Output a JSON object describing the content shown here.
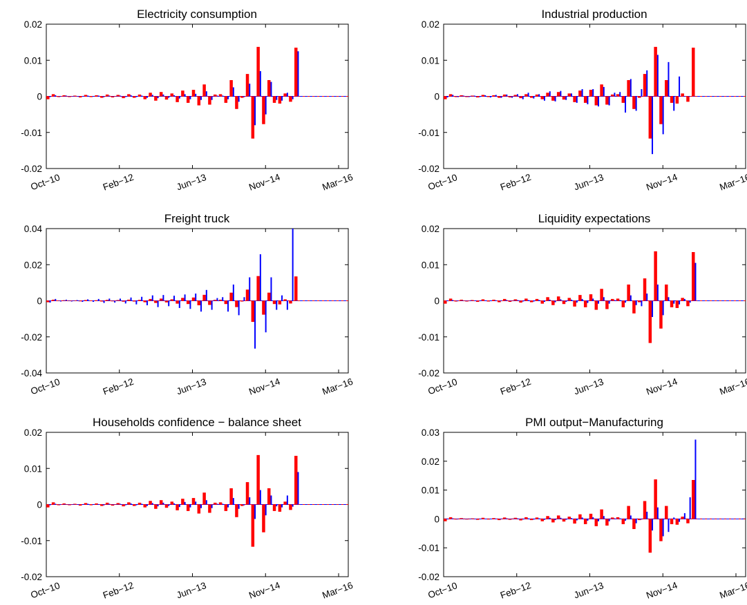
{
  "colors": {
    "red": "#ff0000",
    "blue": "#0000ff",
    "axis": "#000000"
  },
  "chart_data": [
    {
      "type": "bar",
      "title": "Electricity consumption",
      "ylim": [
        -0.02,
        0.02
      ],
      "yticks": [
        -0.02,
        -0.01,
        0,
        0.01,
        0.02
      ],
      "ytick_labels": [
        "-0.02",
        "-0.01",
        "0",
        "0.01",
        "0.02"
      ],
      "xtick_labels": [
        "Oct−10",
        "Feb−12",
        "Jun−13",
        "Nov−14",
        "Mar−16"
      ],
      "grid": false,
      "series": [
        {
          "values": [
            -0.0008,
            0.0006,
            -0.0002,
            0.0003,
            -0.0002,
            0.0002,
            -0.0003,
            0.0004,
            -0.0002,
            0.0003,
            -0.0004,
            0.0005,
            -0.0003,
            0.0004,
            -0.0005,
            0.0006,
            -0.0004,
            0.0005,
            -0.0008,
            0.001,
            -0.0012,
            0.0012,
            -0.0009,
            0.0008,
            -0.0016,
            0.0016,
            -0.0018,
            0.0018,
            -0.0025,
            0.0033,
            -0.0023,
            0.0005,
            0.0006,
            -0.0018,
            0.0045,
            -0.0035,
            -0.0004,
            0.0062,
            -0.0117,
            0.0137,
            -0.0077,
            0.0045,
            -0.0018,
            -0.002,
            0.0008,
            -0.0015,
            0.0135,
            0,
            0,
            0,
            0,
            0,
            0,
            0
          ]
        },
        {
          "values": [
            -0.0002,
            0.0003,
            -0.0001,
            0.0002,
            -0.0001,
            0.0001,
            -0.0001,
            0.0002,
            -0.0001,
            0.0002,
            -0.0002,
            0.0002,
            -0.0001,
            0.0002,
            -0.0002,
            0.0003,
            -0.0002,
            0.0002,
            -0.0004,
            0.0004,
            -0.0005,
            0.0005,
            -0.0004,
            0.0003,
            -0.0006,
            0.0006,
            -0.0008,
            0.0007,
            -0.001,
            0.0014,
            -0.001,
            0.0002,
            0.0002,
            -0.0008,
            0.0025,
            -0.0015,
            -0.0002,
            0.0035,
            -0.008,
            0.007,
            -0.005,
            0.004,
            -0.001,
            -0.0012,
            0.001,
            -0.0008,
            0.0125,
            0,
            0,
            0,
            0,
            0,
            0,
            0
          ]
        }
      ]
    },
    {
      "type": "bar",
      "title": "Industrial production",
      "ylim": [
        -0.02,
        0.02
      ],
      "yticks": [
        -0.02,
        -0.01,
        0,
        0.01,
        0.02
      ],
      "ytick_labels": [
        "-0.02",
        "-0.01",
        "0",
        "0.01",
        "0.02"
      ],
      "xtick_labels": [
        "Oct−10",
        "Feb−12",
        "Jun−13",
        "Nov−14",
        "Mar−16"
      ],
      "grid": false,
      "series": [
        {
          "values": [
            -0.0008,
            0.0006,
            -0.0002,
            0.0003,
            -0.0002,
            0.0002,
            -0.0003,
            0.0004,
            -0.0002,
            0.0003,
            -0.0004,
            0.0005,
            -0.0003,
            0.0004,
            -0.0005,
            0.0006,
            -0.0004,
            0.0005,
            -0.0008,
            0.001,
            -0.0012,
            0.0012,
            -0.0009,
            0.0008,
            -0.0016,
            0.0016,
            -0.0018,
            0.0018,
            -0.0025,
            0.0033,
            -0.0023,
            0.0005,
            0.0006,
            -0.0018,
            0.0045,
            -0.0035,
            -0.0004,
            0.0062,
            -0.0117,
            0.0137,
            -0.0077,
            0.0045,
            -0.0018,
            -0.002,
            0.0008,
            -0.0015,
            0.0135,
            0,
            0,
            0,
            0,
            0,
            0,
            0
          ]
        },
        {
          "values": [
            -0.0003,
            0.0004,
            -0.0002,
            0.0002,
            -0.0002,
            0.0002,
            -0.0002,
            0.0003,
            -0.0003,
            0.0004,
            -0.0004,
            0.0005,
            -0.0004,
            0.0006,
            -0.0008,
            0.001,
            -0.0006,
            0.0006,
            -0.0012,
            0.0014,
            -0.0014,
            0.0015,
            -0.001,
            0.0008,
            -0.0018,
            0.002,
            -0.0022,
            0.002,
            -0.0028,
            0.0026,
            -0.0025,
            0.001,
            0.0012,
            -0.0045,
            0.0048,
            -0.004,
            0.002,
            0.0072,
            -0.016,
            0.0115,
            -0.0105,
            0.0095,
            -0.004,
            0.0055,
            0,
            0,
            0,
            0,
            0,
            0,
            0,
            0,
            0,
            0
          ]
        }
      ]
    },
    {
      "type": "bar",
      "title": "Freight truck",
      "ylim": [
        -0.04,
        0.04
      ],
      "yticks": [
        -0.04,
        -0.02,
        0,
        0.02,
        0.04
      ],
      "ytick_labels": [
        "-0.04",
        "-0.02",
        "0",
        "0.02",
        "0.04"
      ],
      "xtick_labels": [
        "Oct−10",
        "Feb−12",
        "Jun−13",
        "Nov−14",
        "Mar−16"
      ],
      "grid": false,
      "series": [
        {
          "values": [
            -0.0008,
            0.0006,
            -0.0002,
            0.0003,
            -0.0002,
            0.0002,
            -0.0003,
            0.0004,
            -0.0002,
            0.0003,
            -0.0004,
            0.0005,
            -0.0003,
            0.0004,
            -0.0005,
            0.0006,
            -0.0004,
            0.0005,
            -0.0008,
            0.001,
            -0.0012,
            0.0012,
            -0.0009,
            0.0008,
            -0.0016,
            0.0016,
            -0.0018,
            0.0018,
            -0.0025,
            0.0033,
            -0.0023,
            0.0005,
            0.0006,
            -0.0018,
            0.0045,
            -0.0035,
            -0.0004,
            0.0062,
            -0.0117,
            0.0137,
            -0.0077,
            0.0045,
            -0.0018,
            -0.002,
            0.0008,
            -0.0015,
            0.0135,
            0,
            0,
            0,
            0,
            0,
            0,
            0
          ]
        },
        {
          "values": [
            -0.001,
            0.001,
            -0.0004,
            0.0006,
            -0.0004,
            0.0004,
            -0.0006,
            0.0008,
            -0.0006,
            0.001,
            -0.0012,
            0.0012,
            -0.001,
            0.0012,
            -0.0015,
            0.0018,
            -0.002,
            0.0022,
            -0.0025,
            0.003,
            -0.0035,
            0.0032,
            -0.003,
            0.0028,
            -0.004,
            0.0035,
            -0.0045,
            0.004,
            -0.006,
            0.006,
            -0.005,
            0.0015,
            0.002,
            -0.006,
            0.009,
            -0.008,
            0.002,
            0.013,
            -0.0265,
            0.0258,
            -0.0175,
            0.013,
            -0.005,
            0.003,
            -0.005,
            0.04,
            0,
            0,
            0,
            0,
            0,
            0,
            0,
            0
          ]
        }
      ]
    },
    {
      "type": "bar",
      "title": "Liquidity expectations",
      "ylim": [
        -0.02,
        0.02
      ],
      "yticks": [
        -0.02,
        -0.01,
        0,
        0.01,
        0.02
      ],
      "ytick_labels": [
        "-0.02",
        "-0.01",
        "0",
        "0.01",
        "0.02"
      ],
      "xtick_labels": [
        "Oct−10",
        "Feb−12",
        "Jun−13",
        "Nov−14",
        "Mar−16"
      ],
      "grid": false,
      "series": [
        {
          "values": [
            -0.0008,
            0.0006,
            -0.0002,
            0.0003,
            -0.0002,
            0.0002,
            -0.0003,
            0.0004,
            -0.0002,
            0.0003,
            -0.0004,
            0.0005,
            -0.0003,
            0.0004,
            -0.0005,
            0.0006,
            -0.0004,
            0.0005,
            -0.0008,
            0.001,
            -0.0012,
            0.0012,
            -0.0009,
            0.0008,
            -0.0016,
            0.0016,
            -0.0018,
            0.0018,
            -0.0025,
            0.0033,
            -0.0023,
            0.0005,
            0.0006,
            -0.0018,
            0.0045,
            -0.0035,
            -0.0004,
            0.0062,
            -0.0117,
            0.0137,
            -0.0077,
            0.0045,
            -0.0018,
            -0.002,
            0.0008,
            -0.0015,
            0.0135,
            0,
            0,
            0,
            0,
            0,
            0,
            0
          ]
        },
        {
          "values": [
            -0.0001,
            0.0002,
            -0.0001,
            0.0001,
            -0.0001,
            0.0001,
            -0.0001,
            0.0001,
            -0.0001,
            0.0001,
            -0.0001,
            0.0002,
            -0.0001,
            0.0002,
            -0.0002,
            0.0002,
            -0.0002,
            0.0002,
            -0.0003,
            0.0003,
            -0.0004,
            0.0004,
            -0.0003,
            0.0003,
            -0.0005,
            0.0005,
            -0.0006,
            0.0006,
            -0.0008,
            0.001,
            -0.0008,
            0.0002,
            0.0002,
            -0.0005,
            0.0015,
            -0.0012,
            -0.0015,
            0.002,
            -0.0045,
            0.0045,
            -0.004,
            0.001,
            -0.0008,
            -0.001,
            0.0005,
            -0.0005,
            0.0105,
            0,
            0,
            0,
            0,
            0,
            0,
            0
          ]
        }
      ]
    },
    {
      "type": "bar",
      "title": "Households confidence − balance sheet",
      "ylim": [
        -0.02,
        0.02
      ],
      "yticks": [
        -0.02,
        -0.01,
        0,
        0.01,
        0.02
      ],
      "ytick_labels": [
        "-0.02",
        "-0.01",
        "0",
        "0.01",
        "0.02"
      ],
      "xtick_labels": [
        "Oct−10",
        "Feb−12",
        "Jun−13",
        "Nov−14",
        "Mar−16"
      ],
      "grid": false,
      "series": [
        {
          "values": [
            -0.0008,
            0.0006,
            -0.0002,
            0.0003,
            -0.0002,
            0.0002,
            -0.0003,
            0.0004,
            -0.0002,
            0.0003,
            -0.0004,
            0.0005,
            -0.0003,
            0.0004,
            -0.0005,
            0.0006,
            -0.0004,
            0.0005,
            -0.0008,
            0.001,
            -0.0012,
            0.0012,
            -0.0009,
            0.0008,
            -0.0016,
            0.0016,
            -0.0018,
            0.0018,
            -0.0025,
            0.0033,
            -0.0023,
            0.0005,
            0.0006,
            -0.0018,
            0.0045,
            -0.0035,
            -0.0004,
            0.0062,
            -0.0117,
            0.0137,
            -0.0077,
            0.0045,
            -0.0018,
            -0.002,
            0.0008,
            -0.0015,
            0.0135,
            0,
            0,
            0,
            0,
            0,
            0,
            0
          ]
        },
        {
          "values": [
            -0.0002,
            0.0002,
            -0.0001,
            0.0001,
            -0.0001,
            0.0001,
            -0.0001,
            0.0002,
            -0.0001,
            0.0001,
            -0.0002,
            0.0002,
            -0.0001,
            0.0002,
            -0.0002,
            0.0003,
            -0.0002,
            0.0002,
            -0.0004,
            0.0004,
            -0.0005,
            0.0005,
            -0.0004,
            0.0003,
            -0.0007,
            0.0007,
            -0.0008,
            0.0008,
            -0.001,
            0.0012,
            -0.001,
            0.0002,
            0.0002,
            -0.0008,
            0.0018,
            -0.0012,
            -0.0002,
            0.002,
            -0.004,
            0.004,
            -0.003,
            0.0025,
            -0.0005,
            -0.0008,
            0.0025,
            -0.0006,
            0.009,
            0,
            0,
            0,
            0,
            0,
            0,
            0
          ]
        }
      ]
    },
    {
      "type": "bar",
      "title": "PMI output−Manufacturing",
      "ylim": [
        -0.02,
        0.03
      ],
      "yticks": [
        -0.02,
        -0.01,
        0,
        0.01,
        0.02,
        0.03
      ],
      "ytick_labels": [
        "-0.02",
        "-0.01",
        "0",
        "0.01",
        "0.02",
        "0.03"
      ],
      "xtick_labels": [
        "Oct−10",
        "Feb−12",
        "Jun−13",
        "Nov−14",
        "Mar−16"
      ],
      "grid": false,
      "series": [
        {
          "values": [
            -0.0008,
            0.0006,
            -0.0002,
            0.0003,
            -0.0002,
            0.0002,
            -0.0003,
            0.0004,
            -0.0002,
            0.0003,
            -0.0004,
            0.0005,
            -0.0003,
            0.0004,
            -0.0005,
            0.0006,
            -0.0004,
            0.0005,
            -0.0008,
            0.001,
            -0.0012,
            0.0012,
            -0.0009,
            0.0008,
            -0.0016,
            0.0016,
            -0.0018,
            0.0018,
            -0.0025,
            0.0033,
            -0.0023,
            0.0005,
            0.0006,
            -0.0018,
            0.0045,
            -0.0035,
            -0.0004,
            0.0062,
            -0.0117,
            0.0137,
            -0.0077,
            0.0045,
            -0.0018,
            -0.002,
            0.0008,
            -0.0015,
            0.0135,
            0,
            0,
            0,
            0,
            0,
            0,
            0
          ]
        },
        {
          "values": [
            -0.0001,
            0.0002,
            -0.0001,
            0.0001,
            -0.0001,
            0.0001,
            -0.0001,
            0.0001,
            -0.0001,
            0.0001,
            -0.0001,
            0.0002,
            -0.0001,
            0.0002,
            -0.0002,
            0.0002,
            -0.0002,
            0.0002,
            -0.0003,
            0.0004,
            -0.0004,
            0.0004,
            -0.0003,
            0.0003,
            -0.0005,
            0.0005,
            -0.0006,
            0.0006,
            -0.0008,
            0.001,
            -0.0008,
            0.0002,
            0.0002,
            -0.0006,
            0.0012,
            -0.0015,
            -0.0002,
            0.0025,
            -0.004,
            0.004,
            -0.006,
            -0.0045,
            0.0005,
            -0.001,
            0.002,
            0.0075,
            0.0275,
            0,
            0,
            0,
            0,
            0,
            0,
            0
          ]
        }
      ]
    }
  ]
}
